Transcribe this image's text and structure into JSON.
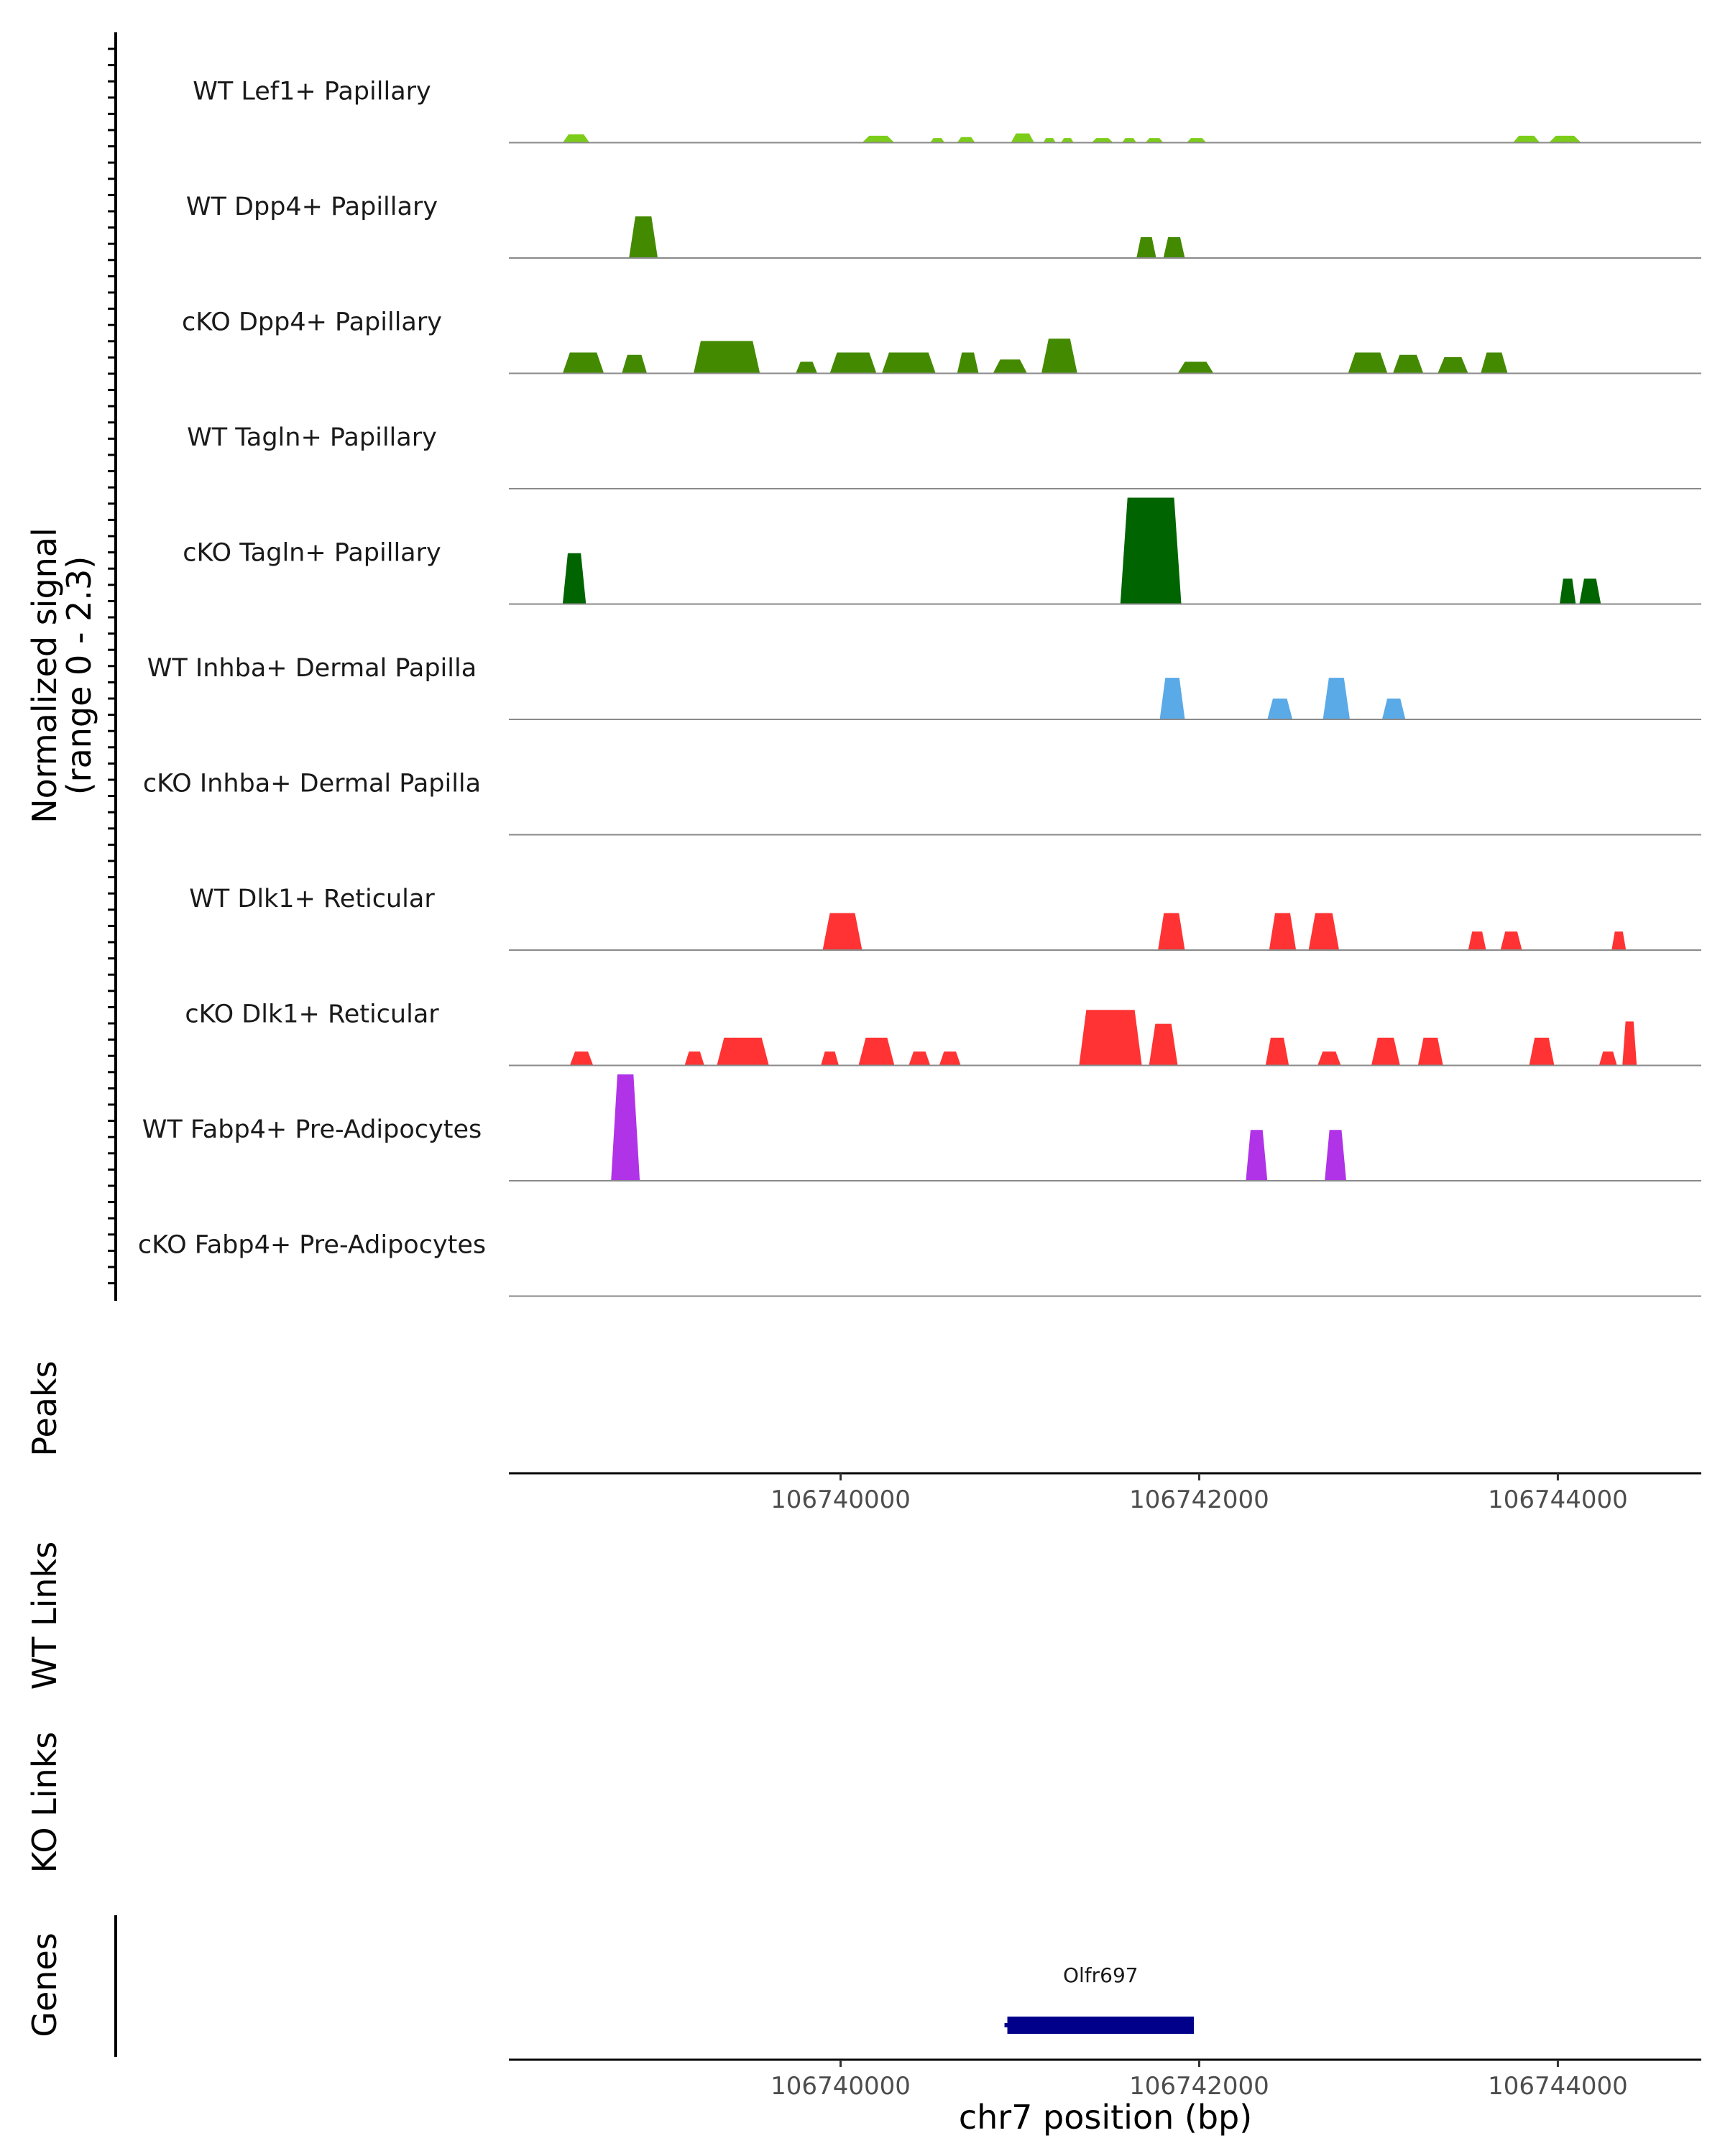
{
  "chart_data": {
    "type": "area",
    "title": "",
    "y_axis_title_line1": "Normalized signal",
    "y_axis_title_line2": "(range 0 - 2.3)",
    "ymax": 2.3,
    "xlim": [
      106738150,
      106744800
    ],
    "xlabel": "chr7 position (bp)",
    "x_ticks": [
      {
        "value": 106740000,
        "label": "106740000"
      },
      {
        "value": 106742000,
        "label": "106742000"
      },
      {
        "value": 106744000,
        "label": "106744000"
      }
    ],
    "panel_titles": {
      "peaks": "Peaks",
      "wt_links": "WT Links",
      "ko_links": "KO Links",
      "genes": "Genes"
    },
    "tracks": [
      {
        "name": "WT Lef1+ Papillary",
        "color": "#7CCD1A",
        "peaks": [
          [
            106738450,
            106738600,
            0.18
          ],
          [
            106740120,
            106740300,
            0.15
          ],
          [
            106740500,
            106740580,
            0.1
          ],
          [
            106740650,
            106740750,
            0.12
          ],
          [
            106740950,
            106741080,
            0.2
          ],
          [
            106741130,
            106741200,
            0.1
          ],
          [
            106741230,
            106741300,
            0.1
          ],
          [
            106741400,
            106741520,
            0.1
          ],
          [
            106741570,
            106741650,
            0.1
          ],
          [
            106741700,
            106741800,
            0.1
          ],
          [
            106741930,
            106742040,
            0.1
          ],
          [
            106743750,
            106743900,
            0.15
          ],
          [
            106743950,
            106744130,
            0.15
          ]
        ]
      },
      {
        "name": "WT Dpp4+ Papillary",
        "color": "#448A00",
        "peaks": [
          [
            106738820,
            106738980,
            0.9
          ],
          [
            106741650,
            106741760,
            0.45
          ],
          [
            106741800,
            106741920,
            0.45
          ]
        ]
      },
      {
        "name": "cKO Dpp4+ Papillary",
        "color": "#448A00",
        "peaks": [
          [
            106738450,
            106738680,
            0.45
          ],
          [
            106738780,
            106738920,
            0.4
          ],
          [
            106739180,
            106739550,
            0.7
          ],
          [
            106739750,
            106739870,
            0.25
          ],
          [
            106739940,
            106740200,
            0.45
          ],
          [
            106740230,
            106740530,
            0.45
          ],
          [
            106740650,
            106740770,
            0.45
          ],
          [
            106740850,
            106741040,
            0.3
          ],
          [
            106741120,
            106741320,
            0.75
          ],
          [
            106741880,
            106742080,
            0.25
          ],
          [
            106742830,
            106743050,
            0.45
          ],
          [
            106743080,
            106743250,
            0.4
          ],
          [
            106743330,
            106743500,
            0.35
          ],
          [
            106743570,
            106743720,
            0.45
          ]
        ]
      },
      {
        "name": "WT Tagln+ Papillary",
        "color": "#006400",
        "peaks": []
      },
      {
        "name": "cKO Tagln+ Papillary",
        "color": "#006400",
        "peaks": [
          [
            106738450,
            106738580,
            1.1
          ],
          [
            106741560,
            106741900,
            2.3
          ],
          [
            106744010,
            106744100,
            0.55
          ],
          [
            106744120,
            106744240,
            0.55
          ]
        ]
      },
      {
        "name": "WT Inhba+ Dermal Papilla",
        "color": "#5AAAE8",
        "peaks": [
          [
            106741780,
            106741920,
            0.9
          ],
          [
            106742380,
            106742520,
            0.45
          ],
          [
            106742690,
            106742840,
            0.9
          ],
          [
            106743020,
            106743150,
            0.45
          ]
        ]
      },
      {
        "name": "cKO Inhba+ Dermal Papilla",
        "color": "#5AAAE8",
        "peaks": []
      },
      {
        "name": "WT Dlk1+ Reticular",
        "color": "#FF3333",
        "peaks": [
          [
            106739900,
            106740120,
            0.8
          ],
          [
            106741770,
            106741920,
            0.8
          ],
          [
            106742390,
            106742540,
            0.8
          ],
          [
            106742610,
            106742780,
            0.8
          ],
          [
            106743500,
            106743600,
            0.4
          ],
          [
            106743680,
            106743800,
            0.4
          ],
          [
            106744300,
            106744380,
            0.4
          ]
        ]
      },
      {
        "name": "cKO Dlk1+ Reticular",
        "color": "#FF3333",
        "peaks": [
          [
            106738490,
            106738620,
            0.3
          ],
          [
            106739130,
            106739240,
            0.3
          ],
          [
            106739310,
            106739600,
            0.6
          ],
          [
            106739890,
            106739990,
            0.3
          ],
          [
            106740100,
            106740300,
            0.6
          ],
          [
            106740380,
            106740500,
            0.3
          ],
          [
            106740550,
            106740670,
            0.3
          ],
          [
            106741330,
            106741680,
            1.2
          ],
          [
            106741720,
            106741880,
            0.9
          ],
          [
            106742370,
            106742500,
            0.6
          ],
          [
            106742660,
            106742790,
            0.3
          ],
          [
            106742960,
            106743120,
            0.6
          ],
          [
            106743220,
            106743360,
            0.6
          ],
          [
            106743840,
            106743980,
            0.6
          ],
          [
            106744230,
            106744330,
            0.3
          ],
          [
            106744360,
            106744440,
            0.95
          ]
        ]
      },
      {
        "name": "WT Fabp4+ Pre-Adipocytes",
        "color": "#B033E8",
        "peaks": [
          [
            106738720,
            106738880,
            2.3
          ],
          [
            106742260,
            106742380,
            1.1
          ],
          [
            106742700,
            106742820,
            1.1
          ]
        ]
      },
      {
        "name": "cKO Fabp4+ Pre-Adipocytes",
        "color": "#B033E8",
        "peaks": []
      }
    ],
    "genes": [
      {
        "name": "Olfr697",
        "start": 106740930,
        "end": 106741970,
        "color": "#00008B"
      }
    ]
  }
}
